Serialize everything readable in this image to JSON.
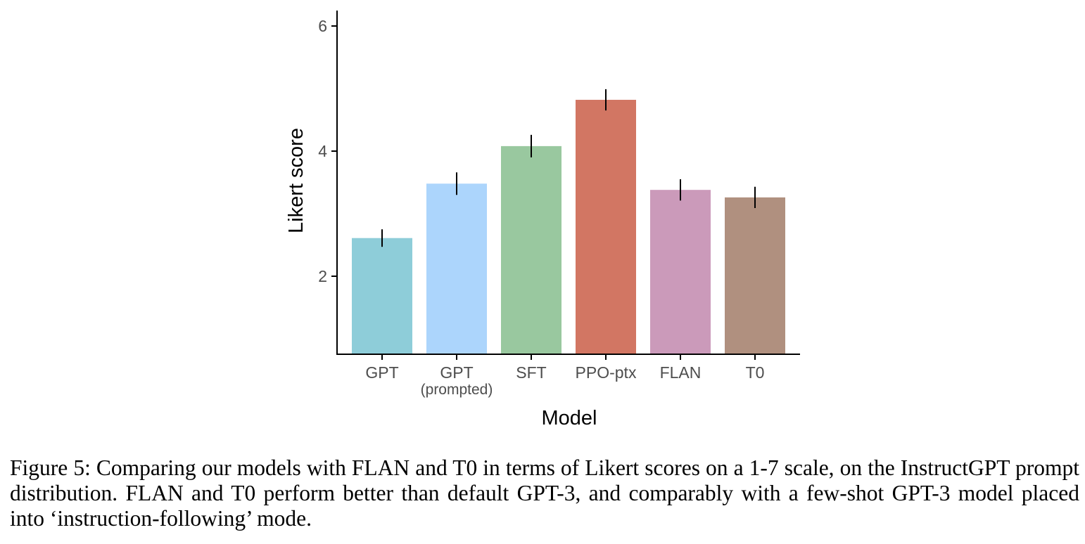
{
  "chart_data": {
    "type": "bar",
    "title": "",
    "xlabel": "Model",
    "ylabel": "Likert score",
    "categories": [
      "GPT",
      "GPT (prompted)",
      "SFT",
      "PPO-ptx",
      "FLAN",
      "T0"
    ],
    "category_labels": [
      {
        "main": "GPT",
        "sub": ""
      },
      {
        "main": "GPT",
        "sub": "(prompted)"
      },
      {
        "main": "SFT",
        "sub": ""
      },
      {
        "main": "PPO-ptx",
        "sub": ""
      },
      {
        "main": "FLAN",
        "sub": ""
      },
      {
        "main": "T0",
        "sub": ""
      }
    ],
    "values": [
      2.61,
      3.48,
      4.08,
      4.82,
      3.38,
      3.26
    ],
    "error": [
      0.14,
      0.18,
      0.18,
      0.17,
      0.17,
      0.17
    ],
    "colors": [
      "#8ecdd9",
      "#acd5fc",
      "#99c89f",
      "#d27663",
      "#cb9aba",
      "#b0907f"
    ],
    "yticks": [
      2,
      4,
      6
    ],
    "ylim": [
      0.75,
      6.25
    ],
    "grid": false,
    "legend": "none"
  },
  "caption": "Figure 5: Comparing our models with FLAN and T0 in terms of Likert scores on a 1-7 scale, on the InstructGPT prompt distribution. FLAN and T0 perform better than default GPT-3, and comparably with a few-shot GPT-3 model placed into ‘instruction-following’ mode."
}
